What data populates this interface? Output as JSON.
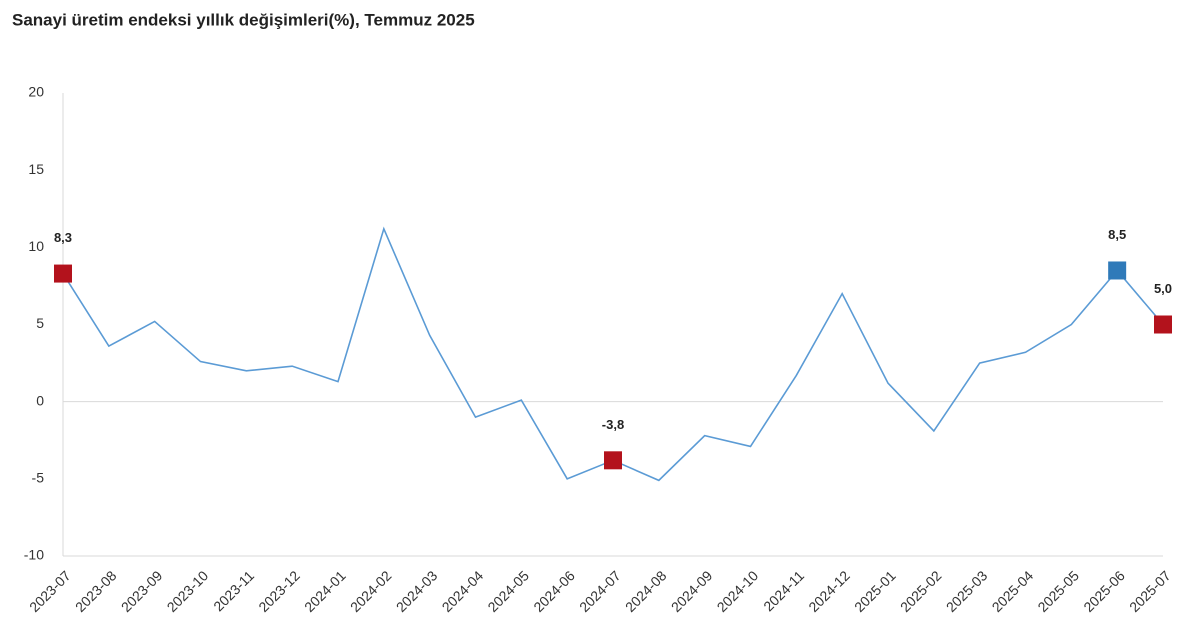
{
  "chart_data": {
    "type": "line",
    "title": "Sanayi üretim endeksi yıllık değişimleri(%), Temmuz 2025",
    "categories": [
      "2023-07",
      "2023-08",
      "2023-09",
      "2023-10",
      "2023-11",
      "2023-12",
      "2024-01",
      "2024-02",
      "2024-03",
      "2024-04",
      "2024-05",
      "2024-06",
      "2024-07",
      "2024-08",
      "2024-09",
      "2024-10",
      "2024-11",
      "2024-12",
      "2025-01",
      "2025-02",
      "2025-03",
      "2025-04",
      "2025-05",
      "2025-06",
      "2025-07"
    ],
    "values": [
      8.3,
      3.6,
      5.2,
      2.6,
      2.0,
      2.3,
      1.3,
      11.2,
      4.3,
      -1.0,
      0.1,
      -5.0,
      -3.8,
      -5.1,
      -2.2,
      -2.9,
      1.7,
      7.0,
      1.2,
      -1.9,
      2.5,
      3.2,
      5.0,
      8.5,
      5.0
    ],
    "value_labels": [
      "8,3",
      null,
      null,
      null,
      null,
      null,
      null,
      null,
      null,
      null,
      null,
      null,
      "-3,8",
      null,
      null,
      null,
      null,
      null,
      null,
      null,
      null,
      null,
      null,
      "8,5",
      "5,0"
    ],
    "marker_colors": [
      "#b3121c",
      null,
      null,
      null,
      null,
      null,
      null,
      null,
      null,
      null,
      null,
      null,
      "#b3121c",
      null,
      null,
      null,
      null,
      null,
      null,
      null,
      null,
      null,
      null,
      "#2f7ab9",
      "#b3121c"
    ],
    "color": "#5b9bd5",
    "ylim": [
      -10,
      20
    ],
    "yticks": [
      -10,
      -5,
      0,
      5,
      10,
      15,
      20
    ],
    "grid": false
  }
}
